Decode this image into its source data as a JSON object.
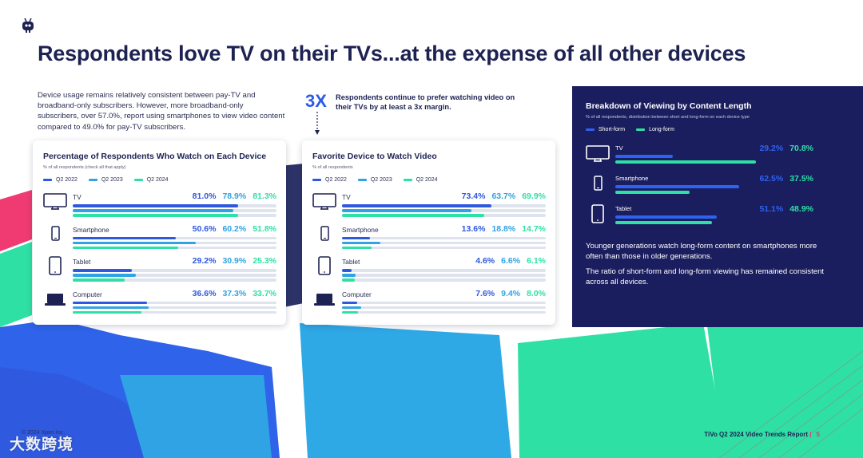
{
  "title": "Respondents love TV on their TVs...at the expense of all other devices",
  "intro": "Device usage remains relatively consistent between pay-TV and broadband-only subscribers. However, more broadband-only subscribers, over 57.0%, report using smartphones to view video content compared to 49.0% for pay-TV subscribers.",
  "callout": {
    "big": "3X",
    "text": "Respondents continue to prefer watching video on their TVs by at least a 3x margin."
  },
  "colors": {
    "q2_2022": "#2e58e0",
    "q2_2023": "#2fa3e4",
    "q2_2024": "#2fe0a4",
    "short_form": "#2e62f0",
    "long_form": "#2fe0a4"
  },
  "chart_data": [
    {
      "type": "bar",
      "title": "Percentage of Respondents Who Watch on Each Device",
      "note": "% of all respondents (check all that apply)",
      "categories": [
        "TV",
        "Smartphone",
        "Tablet",
        "Computer"
      ],
      "icons": [
        "tv-icon",
        "smartphone-icon",
        "tablet-icon",
        "laptop-icon"
      ],
      "series": [
        {
          "name": "Q2 2022",
          "values": [
            81.0,
            50.6,
            29.2,
            36.6
          ],
          "labels": [
            "81.0%",
            "50.6%",
            "29.2%",
            "36.6%"
          ]
        },
        {
          "name": "Q2 2023",
          "values": [
            78.9,
            60.2,
            30.9,
            37.3
          ],
          "labels": [
            "78.9%",
            "60.2%",
            "30.9%",
            "37.3%"
          ]
        },
        {
          "name": "Q2 2024",
          "values": [
            81.3,
            51.8,
            25.3,
            33.7
          ],
          "labels": [
            "81.3%",
            "51.8%",
            "25.3%",
            "33.7%"
          ]
        }
      ],
      "ylim": [
        0,
        100
      ]
    },
    {
      "type": "bar",
      "title": "Favorite Device to Watch Video",
      "note": "% of all respondents",
      "categories": [
        "TV",
        "Smartphone",
        "Tablet",
        "Computer"
      ],
      "icons": [
        "tv-icon",
        "smartphone-icon",
        "tablet-icon",
        "laptop-icon"
      ],
      "series": [
        {
          "name": "Q2 2022",
          "values": [
            73.4,
            13.6,
            4.6,
            7.6
          ],
          "labels": [
            "73.4%",
            "13.6%",
            "4.6%",
            "7.6%"
          ]
        },
        {
          "name": "Q2 2023",
          "values": [
            63.7,
            18.8,
            6.6,
            9.4
          ],
          "labels": [
            "63.7%",
            "18.8%",
            "6.6%",
            "9.4%"
          ]
        },
        {
          "name": "Q2 2024",
          "values": [
            69.9,
            14.7,
            6.1,
            8.0
          ],
          "labels": [
            "69.9%",
            "14.7%",
            "6.1%",
            "8.0%"
          ]
        }
      ],
      "ylim": [
        0,
        100
      ]
    },
    {
      "type": "bar",
      "title": "Breakdown of Viewing by Content Length",
      "note": "% of all respondents, distribution between short and long-form on each device type",
      "categories": [
        "TV",
        "Smartphone",
        "Tablet"
      ],
      "icons": [
        "tv-icon",
        "smartphone-icon",
        "tablet-icon"
      ],
      "series": [
        {
          "name": "Short-form",
          "values": [
            29.2,
            62.5,
            51.1
          ],
          "labels": [
            "29.2%",
            "62.5%",
            "51.1%"
          ]
        },
        {
          "name": "Long-form",
          "values": [
            70.8,
            37.5,
            48.9
          ],
          "labels": [
            "70.8%",
            "37.5%",
            "48.9%"
          ]
        }
      ],
      "ylim": [
        0,
        100
      ]
    }
  ],
  "dark_panel": {
    "paragraph1": "Younger generations watch long-form content on smartphones more often than those in older generations.",
    "paragraph2": "The ratio of short-form and long-form viewing has remained consistent across all devices."
  },
  "footer": {
    "copyright": "© 2024 Xperi Inc.",
    "report": "TiVo Q2 2024 Video Trends Report",
    "page": "5"
  },
  "watermark": "大数跨境"
}
